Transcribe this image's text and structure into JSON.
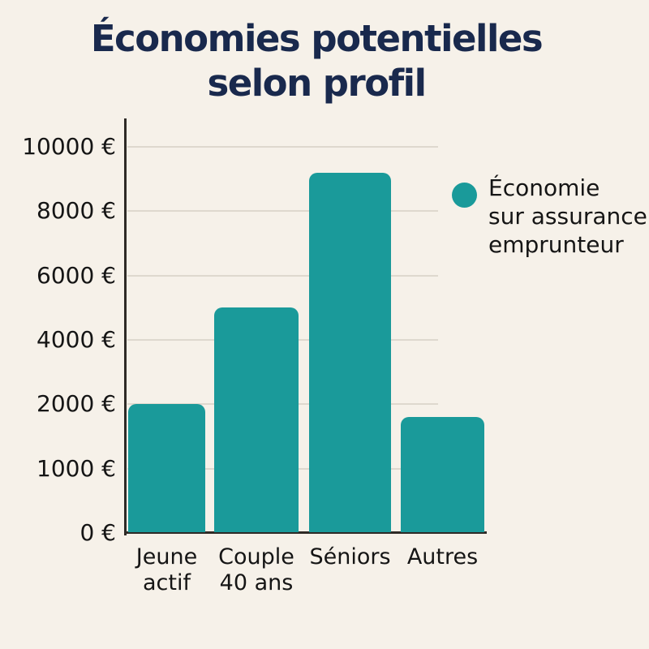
{
  "page": {
    "title_line1": "Économies potentielles",
    "title_line2": "selon profil"
  },
  "legend": {
    "lines": [
      "Économie",
      "sur assurance",
      "emprunteur"
    ],
    "swatch_color": "#1a9a9a"
  },
  "colors": {
    "background": "#f6f1e9",
    "bar": "#1a9a9a",
    "title": "#19294d",
    "label_text": "#151515",
    "axis_line": "#2e2a26",
    "gridline": "#ded8ce"
  },
  "chart_data": {
    "type": "bar",
    "title": "Économies potentielles selon profil",
    "categories": [
      "Jeune\nactif",
      "Couple\n40 ans",
      "Séniors",
      "Autres"
    ],
    "series": [
      {
        "name": "Économie sur assurance emprunteur",
        "values": [
          2000,
          5000,
          9200,
          1800
        ]
      }
    ],
    "unit": "€",
    "y_ticks": [
      0,
      1000,
      2000,
      4000,
      6000,
      8000,
      10000
    ],
    "y_tick_labels": [
      "0 €",
      "1000 €",
      "2000 €",
      "4000 €",
      "6000 €",
      "8000 €",
      "10000 €"
    ],
    "xlabel": "",
    "ylabel": "",
    "ylim": [
      0,
      10000
    ],
    "grid": true,
    "legend_position": "right",
    "axis_note": "y ticks rendered evenly spaced (non-linear scale as shown)",
    "bar_color": "#1a9a9a"
  }
}
